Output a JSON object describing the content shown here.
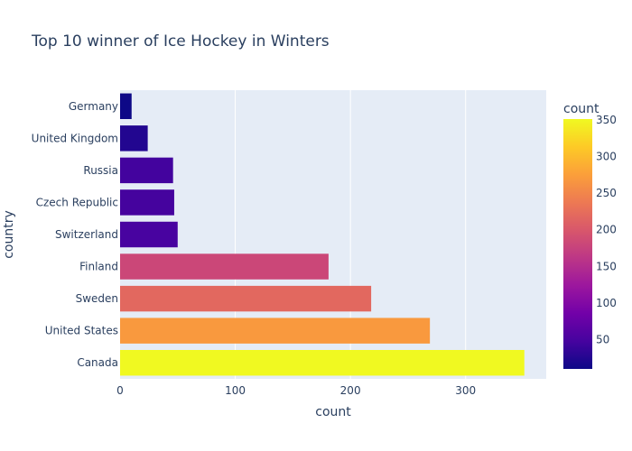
{
  "chart_data": {
    "type": "bar",
    "orientation": "horizontal",
    "title": "Top 10 winner of Ice Hockey in Winters",
    "xlabel": "count",
    "ylabel": "country",
    "xlim": [
      0,
      370
    ],
    "x_ticks": [
      0,
      100,
      200,
      300
    ],
    "categories": [
      "Germany",
      "United Kingdom",
      "Russia",
      "Czech Republic",
      "Switzerland",
      "Finland",
      "Sweden",
      "United States",
      "Canada"
    ],
    "values": [
      10,
      24,
      46,
      47,
      50,
      181,
      218,
      269,
      351
    ],
    "grid": true,
    "colorbar": {
      "title": "count",
      "range": [
        10,
        351
      ],
      "ticks": [
        50,
        100,
        150,
        200,
        250,
        300,
        350
      ],
      "colorscale": [
        "#0d0887",
        "#46039f",
        "#7201a8",
        "#9c179e",
        "#bd3786",
        "#d8576b",
        "#ed7953",
        "#fb9f3a",
        "#fdca26",
        "#f0f921"
      ]
    },
    "plot_bg": "#e5ecf6"
  }
}
